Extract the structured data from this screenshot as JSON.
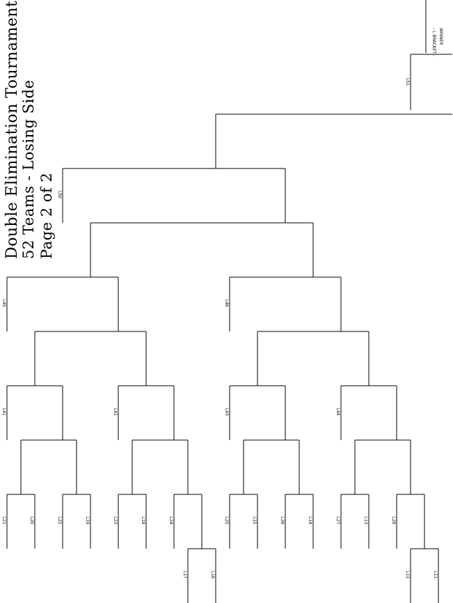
{
  "title": "Double Elimination Tournament",
  "subtitle": "52 Teams - Losing Side",
  "page": "Page 2 of 2",
  "winner": "WINNER",
  "bracket_label": "- L BRACKET -",
  "labels": {
    "L51": "L51",
    "L50": "L50",
    "L45": "L45",
    "L46": "L46",
    "L41": "L41",
    "L42": "L42",
    "L43": "L43",
    "L44": "L44",
    "L21": "L21",
    "L20": "L20",
    "L22": "L22",
    "L19": "L19",
    "L23": "L23",
    "L18": "L18",
    "L24": "L24",
    "L25": "L25",
    "L15": "L15",
    "L26": "L26",
    "L14": "L14",
    "L27": "L27",
    "L13": "L13",
    "L28": "L28",
    "L17": "L17",
    "L16": "L16",
    "L12": "L12",
    "L11": "L11"
  }
}
